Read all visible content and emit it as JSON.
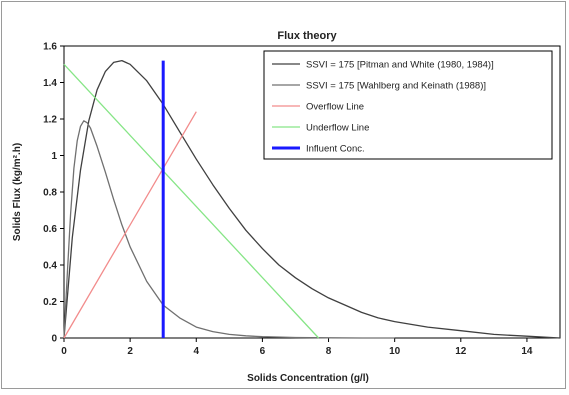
{
  "chart_data": {
    "type": "line",
    "title": "Flux theory",
    "xlabel": "Solids Concentration (g/l)",
    "ylabel": "Solids Flux (kg/m².h)",
    "xlim": [
      0,
      15
    ],
    "ylim": [
      0,
      1.6
    ],
    "xticks": [
      "0",
      "2",
      "4",
      "6",
      "8",
      "10",
      "12",
      "14"
    ],
    "yticks": [
      "0",
      "0.2",
      "0.4",
      "0.6",
      "0.8",
      "1",
      "1.2",
      "1.4",
      "1.6"
    ],
    "grid": false,
    "legend_position": "top-right",
    "series": [
      {
        "name": "SSVI = 175 [Pitman and White (1980, 1984)]",
        "color": "#404040",
        "x": [
          0,
          0.25,
          0.5,
          0.75,
          1.0,
          1.25,
          1.5,
          1.75,
          2.0,
          2.5,
          3.0,
          3.5,
          4.0,
          4.5,
          5.0,
          5.5,
          6.0,
          6.5,
          7.0,
          7.5,
          8.0,
          8.5,
          9.0,
          9.5,
          10.0,
          11.0,
          12.0,
          13.0,
          14.0,
          15.0
        ],
        "values": [
          0,
          0.55,
          0.92,
          1.19,
          1.36,
          1.46,
          1.51,
          1.52,
          1.5,
          1.41,
          1.28,
          1.13,
          0.98,
          0.84,
          0.71,
          0.59,
          0.49,
          0.4,
          0.33,
          0.27,
          0.22,
          0.18,
          0.14,
          0.11,
          0.09,
          0.06,
          0.04,
          0.02,
          0.01,
          0.0
        ]
      },
      {
        "name": "SSVI = 175 [Wahlberg and Keinath (1988)]",
        "color": "#707070",
        "x": [
          0,
          0.1,
          0.2,
          0.3,
          0.4,
          0.5,
          0.6,
          0.7,
          0.8,
          1.0,
          1.25,
          1.5,
          1.75,
          2.0,
          2.5,
          3.0,
          3.5,
          4.0,
          4.5,
          5.0,
          5.5,
          6.0,
          7.0,
          8.0,
          9.0,
          10.0
        ],
        "values": [
          0,
          0.35,
          0.68,
          0.93,
          1.08,
          1.16,
          1.19,
          1.18,
          1.15,
          1.05,
          0.91,
          0.76,
          0.62,
          0.5,
          0.31,
          0.18,
          0.11,
          0.06,
          0.035,
          0.02,
          0.012,
          0.007,
          0.003,
          0.001,
          0.0,
          0.0
        ]
      },
      {
        "name": "Overflow Line",
        "color": "#f28c8c",
        "x": [
          0,
          4
        ],
        "values": [
          0,
          1.24
        ]
      },
      {
        "name": "Underflow Line",
        "color": "#86e586",
        "x": [
          0,
          7.7
        ],
        "values": [
          1.5,
          0
        ]
      },
      {
        "name": "Influent Conc.",
        "color": "#1a1aff",
        "x": [
          3,
          3
        ],
        "values": [
          0,
          1.52
        ]
      }
    ]
  }
}
